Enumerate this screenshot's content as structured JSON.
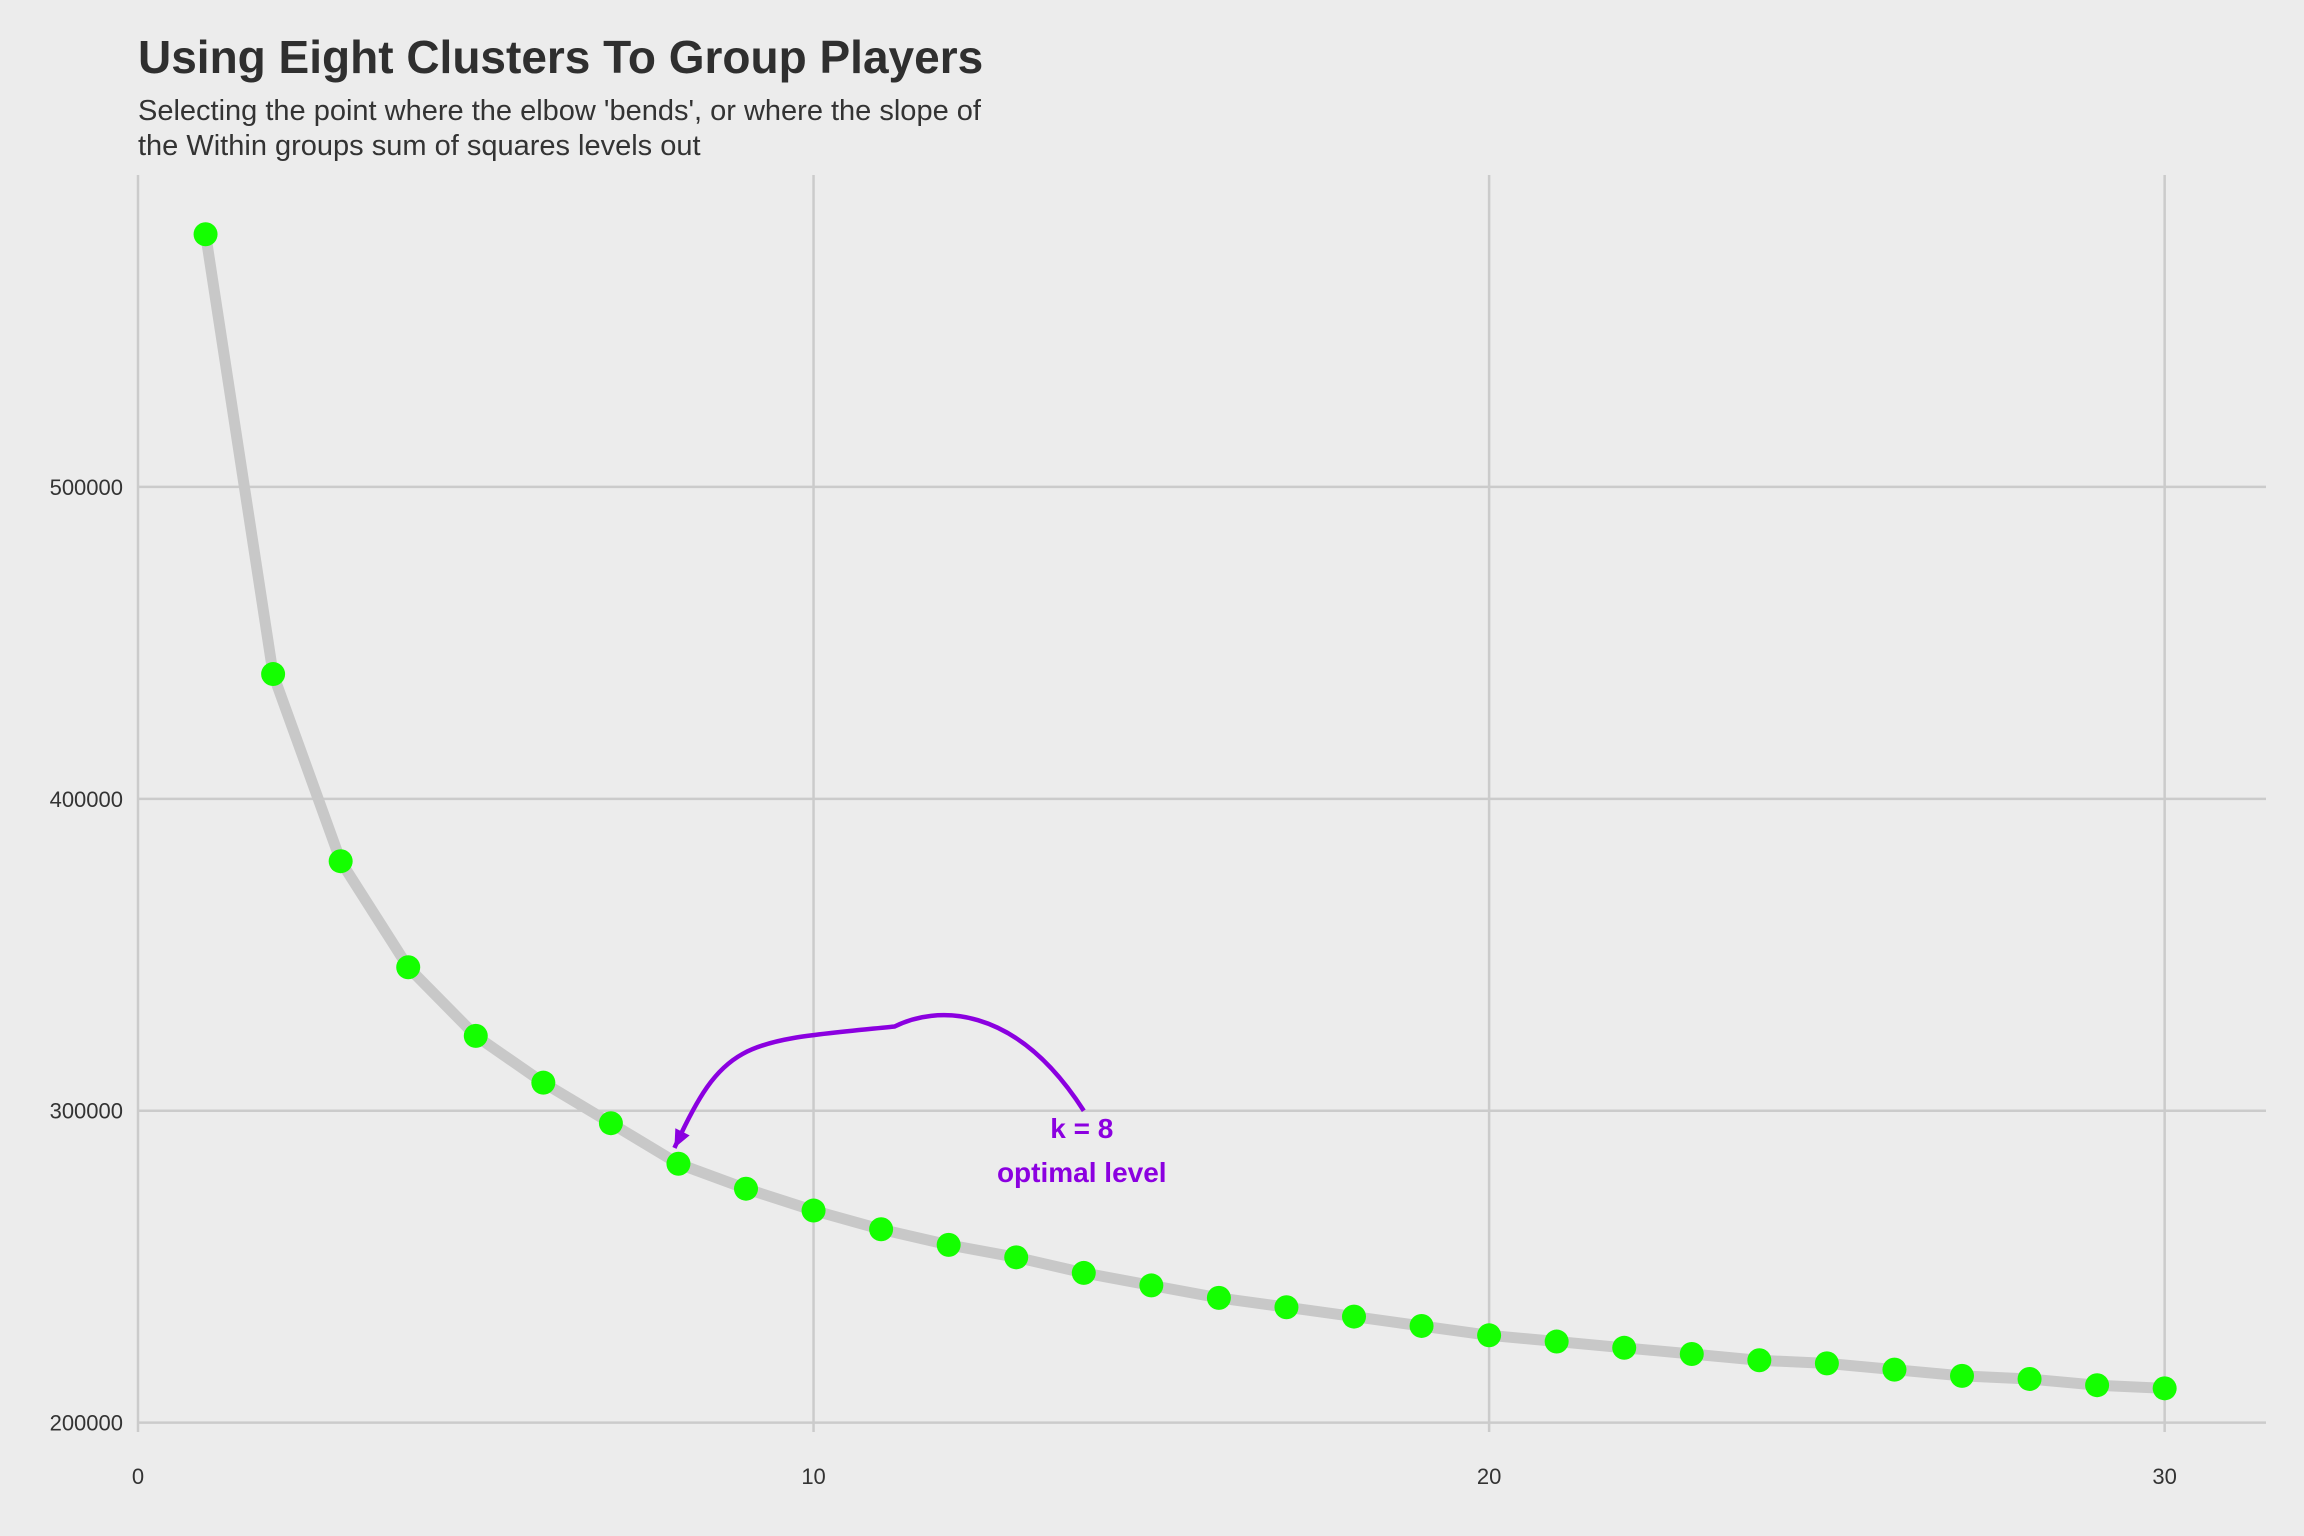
{
  "chart_data": {
    "type": "line",
    "title": "Using Eight Clusters To Group Players",
    "subtitle_lines": [
      "Selecting the point where the elbow 'bends', or where the slope of",
      "the Within groups sum of squares levels out"
    ],
    "xlabel": "",
    "ylabel": "",
    "xlim": [
      0,
      31.5
    ],
    "ylim": [
      197000,
      600000
    ],
    "x_ticks": [
      0,
      10,
      20,
      30
    ],
    "y_ticks": [
      200000,
      300000,
      400000,
      500000
    ],
    "grid": true,
    "x": [
      1,
      2,
      3,
      4,
      5,
      6,
      7,
      8,
      9,
      10,
      11,
      12,
      13,
      14,
      15,
      16,
      17,
      18,
      19,
      20,
      21,
      22,
      23,
      24,
      25,
      26,
      27,
      28,
      29,
      30
    ],
    "values": [
      581000,
      440000,
      380000,
      346000,
      324000,
      309000,
      296000,
      283000,
      275000,
      268000,
      262000,
      257000,
      253000,
      248000,
      244000,
      240000,
      237000,
      234000,
      231000,
      228000,
      226000,
      224000,
      222000,
      220000,
      219000,
      217000,
      215000,
      214000,
      212000,
      211000
    ],
    "annotation": {
      "text_lines": [
        "k = 8",
        "optimal level"
      ],
      "anchor_x": 14,
      "anchor_y": 300000,
      "text_x": 14,
      "text_y": 288000,
      "arrow_tip_x": 8,
      "arrow_tip_y": 290000,
      "arrow_peak_x": 11.2,
      "arrow_peak_y": 327000,
      "color": "#8b00e0"
    },
    "colors": {
      "background": "#ececec",
      "grid": "#cbcbcb",
      "line": "#c8c8c8",
      "points": "#14ff00",
      "text": "#333333"
    }
  }
}
